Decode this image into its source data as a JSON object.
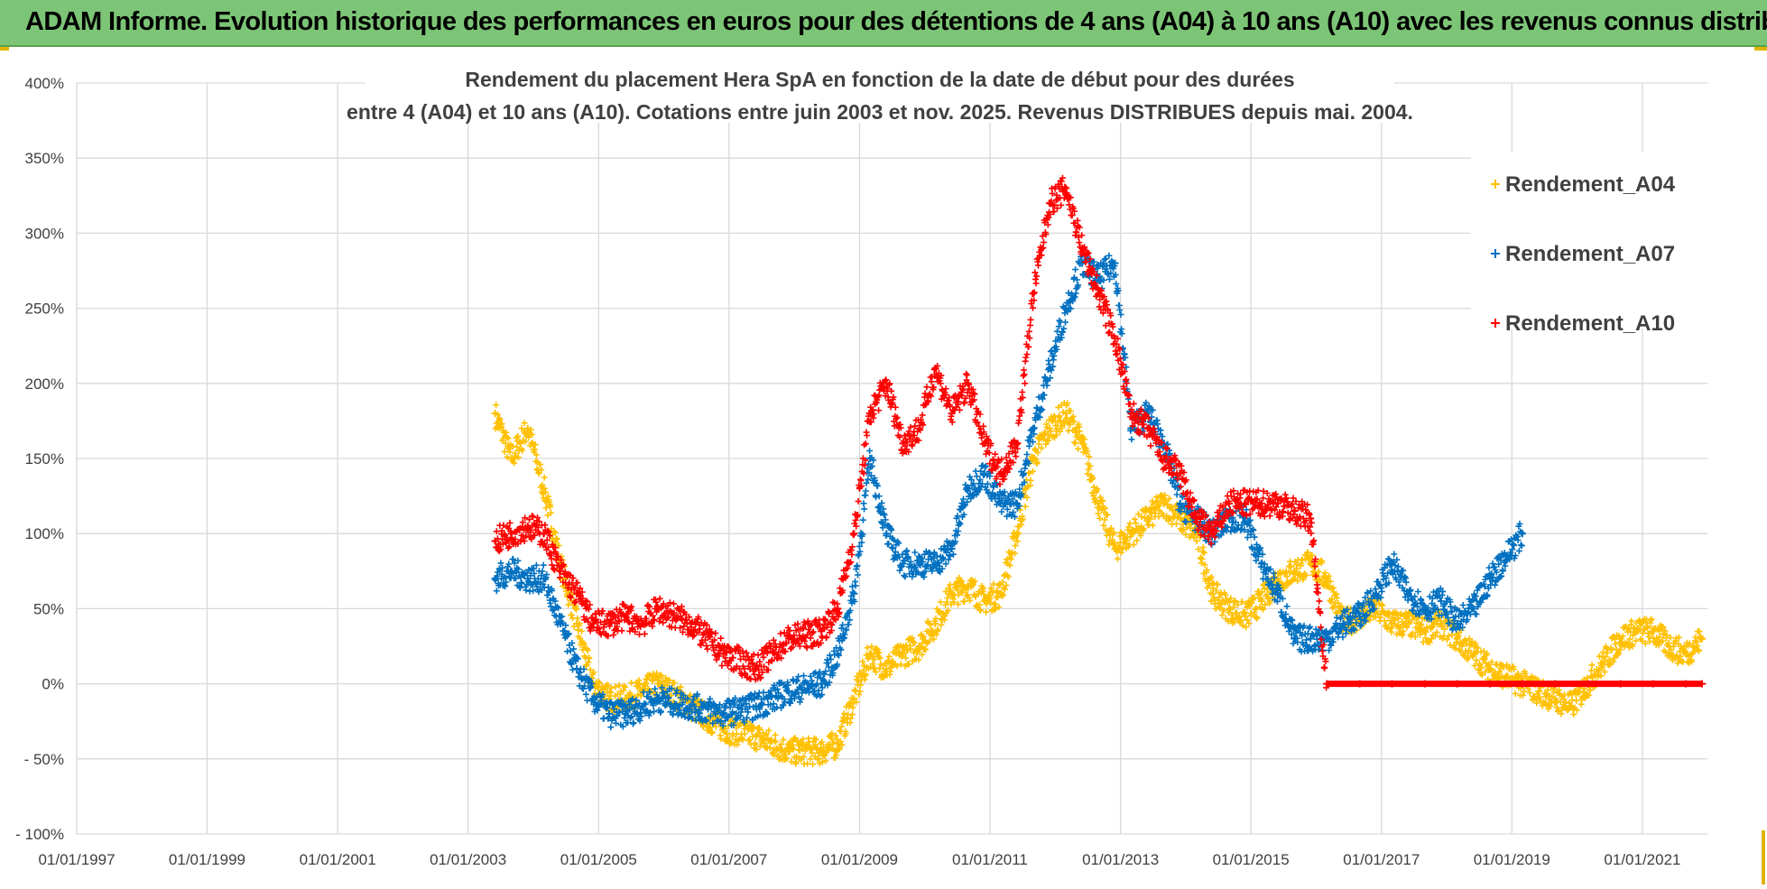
{
  "banner": {
    "text": "ADAM Informe. Evolution historique des performances en euros pour des détentions de 4 ans (A04) à 10 ans (A10) avec les revenus connus distribués"
  },
  "colors": {
    "banner": "#7cc576",
    "a04": "#ffc000",
    "a07": "#0070c0",
    "a10": "#ff0000",
    "grid": "#d9d9d9",
    "text": "#404040"
  },
  "chart_data": {
    "type": "scatter",
    "title": "Rendement du placement Hera SpA en fonction de la date de début pour des durées",
    "subtitle": "entre 4 (A04) et 10 ans (A10). Cotations entre juin 2003 et nov. 2025. Revenus DISTRIBUES depuis mai. 2004.",
    "xlabel": "",
    "ylabel": "",
    "x_ticks": [
      "01/01/1997",
      "01/01/1999",
      "01/01/2001",
      "01/01/2003",
      "01/01/2005",
      "01/01/2007",
      "01/01/2009",
      "01/01/2011",
      "01/01/2013",
      "01/01/2015",
      "01/01/2017",
      "01/01/2019",
      "01/01/2021"
    ],
    "y_ticks": [
      "400%",
      "350%",
      "300%",
      "250%",
      "200%",
      "150%",
      "100%",
      "50%",
      "0%",
      "- 50%",
      "- 100%"
    ],
    "xlim": [
      "1997-01-01",
      "2021-12-31"
    ],
    "ylim": [
      -100,
      400
    ],
    "grid": true,
    "legend_position": "top-right",
    "series": [
      {
        "name": "Rendement_A04",
        "color": "#ffc000",
        "points": [
          [
            "2003-06-01",
            180
          ],
          [
            "2003-09-01",
            150
          ],
          [
            "2003-12-01",
            170
          ],
          [
            "2004-03-01",
            130
          ],
          [
            "2004-06-01",
            80
          ],
          [
            "2004-09-01",
            40
          ],
          [
            "2004-12-01",
            0
          ],
          [
            "2005-03-01",
            -10
          ],
          [
            "2005-06-01",
            -10
          ],
          [
            "2005-09-01",
            -5
          ],
          [
            "2005-12-01",
            0
          ],
          [
            "2006-06-01",
            -15
          ],
          [
            "2006-12-01",
            -30
          ],
          [
            "2007-06-01",
            -35
          ],
          [
            "2007-12-01",
            -45
          ],
          [
            "2008-06-01",
            -45
          ],
          [
            "2008-09-01",
            -40
          ],
          [
            "2008-12-01",
            -10
          ],
          [
            "2009-03-01",
            20
          ],
          [
            "2009-06-01",
            10
          ],
          [
            "2009-09-01",
            20
          ],
          [
            "2009-12-01",
            25
          ],
          [
            "2010-03-01",
            40
          ],
          [
            "2010-06-01",
            60
          ],
          [
            "2010-09-01",
            65
          ],
          [
            "2010-12-01",
            55
          ],
          [
            "2011-03-01",
            60
          ],
          [
            "2011-06-01",
            100
          ],
          [
            "2011-09-01",
            150
          ],
          [
            "2011-12-01",
            170
          ],
          [
            "2012-03-01",
            180
          ],
          [
            "2012-06-01",
            160
          ],
          [
            "2012-09-01",
            120
          ],
          [
            "2012-12-01",
            90
          ],
          [
            "2013-03-01",
            100
          ],
          [
            "2013-06-01",
            110
          ],
          [
            "2013-09-01",
            120
          ],
          [
            "2013-12-01",
            110
          ],
          [
            "2014-03-01",
            100
          ],
          [
            "2014-06-01",
            60
          ],
          [
            "2014-09-01",
            50
          ],
          [
            "2014-12-01",
            45
          ],
          [
            "2015-03-01",
            55
          ],
          [
            "2015-06-01",
            70
          ],
          [
            "2015-09-01",
            75
          ],
          [
            "2015-12-01",
            80
          ],
          [
            "2016-03-01",
            70
          ],
          [
            "2016-06-01",
            40
          ],
          [
            "2016-09-01",
            45
          ],
          [
            "2016-12-01",
            50
          ],
          [
            "2017-03-01",
            40
          ],
          [
            "2017-06-01",
            40
          ],
          [
            "2017-09-01",
            35
          ],
          [
            "2017-12-01",
            40
          ],
          [
            "2018-03-01",
            30
          ],
          [
            "2018-06-01",
            20
          ],
          [
            "2018-09-01",
            10
          ],
          [
            "2018-12-01",
            5
          ],
          [
            "2019-03-01",
            0
          ],
          [
            "2019-06-01",
            -5
          ],
          [
            "2019-09-01",
            -10
          ],
          [
            "2019-12-01",
            -15
          ],
          [
            "2020-03-01",
            0
          ],
          [
            "2020-06-01",
            15
          ],
          [
            "2020-09-01",
            30
          ],
          [
            "2020-12-01",
            35
          ],
          [
            "2021-03-01",
            35
          ],
          [
            "2021-06-01",
            25
          ],
          [
            "2021-09-01",
            20
          ],
          [
            "2021-12-01",
            30
          ]
        ]
      },
      {
        "name": "Rendement_A07",
        "color": "#0070c0",
        "points": [
          [
            "2003-06-01",
            70
          ],
          [
            "2003-09-01",
            75
          ],
          [
            "2003-12-01",
            70
          ],
          [
            "2004-03-01",
            70
          ],
          [
            "2004-06-01",
            40
          ],
          [
            "2004-09-01",
            10
          ],
          [
            "2004-12-01",
            -10
          ],
          [
            "2005-03-01",
            -20
          ],
          [
            "2005-06-01",
            -20
          ],
          [
            "2005-09-01",
            -15
          ],
          [
            "2005-12-01",
            -10
          ],
          [
            "2006-06-01",
            -15
          ],
          [
            "2006-12-01",
            -20
          ],
          [
            "2007-06-01",
            -15
          ],
          [
            "2007-12-01",
            -5
          ],
          [
            "2008-06-01",
            0
          ],
          [
            "2008-09-01",
            20
          ],
          [
            "2008-12-01",
            60
          ],
          [
            "2009-03-01",
            150
          ],
          [
            "2009-06-01",
            100
          ],
          [
            "2009-09-01",
            80
          ],
          [
            "2009-12-01",
            80
          ],
          [
            "2010-03-01",
            80
          ],
          [
            "2010-06-01",
            90
          ],
          [
            "2010-09-01",
            130
          ],
          [
            "2010-12-01",
            140
          ],
          [
            "2011-03-01",
            120
          ],
          [
            "2011-06-01",
            120
          ],
          [
            "2011-09-01",
            170
          ],
          [
            "2011-12-01",
            210
          ],
          [
            "2012-03-01",
            250
          ],
          [
            "2012-06-01",
            280
          ],
          [
            "2012-09-01",
            270
          ],
          [
            "2012-12-01",
            280
          ],
          [
            "2013-03-01",
            170
          ],
          [
            "2013-06-01",
            180
          ],
          [
            "2013-09-01",
            160
          ],
          [
            "2013-12-01",
            120
          ],
          [
            "2014-03-01",
            110
          ],
          [
            "2014-06-01",
            100
          ],
          [
            "2014-09-01",
            110
          ],
          [
            "2014-12-01",
            110
          ],
          [
            "2015-03-01",
            80
          ],
          [
            "2015-06-01",
            60
          ],
          [
            "2015-09-01",
            30
          ],
          [
            "2015-12-01",
            30
          ],
          [
            "2016-03-01",
            30
          ],
          [
            "2016-06-01",
            40
          ],
          [
            "2016-09-01",
            45
          ],
          [
            "2016-12-01",
            60
          ],
          [
            "2017-03-01",
            80
          ],
          [
            "2017-06-01",
            60
          ],
          [
            "2017-09-01",
            50
          ],
          [
            "2017-12-01",
            55
          ],
          [
            "2018-03-01",
            40
          ],
          [
            "2018-06-01",
            50
          ],
          [
            "2018-09-01",
            70
          ],
          [
            "2018-12-01",
            85
          ],
          [
            "2019-03-01",
            100
          ]
        ]
      },
      {
        "name": "Rendement_A10",
        "color": "#ff0000",
        "points": [
          [
            "2003-06-01",
            95
          ],
          [
            "2003-09-01",
            100
          ],
          [
            "2003-12-01",
            105
          ],
          [
            "2004-03-01",
            100
          ],
          [
            "2004-06-01",
            75
          ],
          [
            "2004-09-01",
            60
          ],
          [
            "2004-12-01",
            40
          ],
          [
            "2005-03-01",
            40
          ],
          [
            "2005-06-01",
            45
          ],
          [
            "2005-09-01",
            40
          ],
          [
            "2005-12-01",
            50
          ],
          [
            "2006-06-01",
            40
          ],
          [
            "2006-12-01",
            20
          ],
          [
            "2007-06-01",
            10
          ],
          [
            "2007-12-01",
            30
          ],
          [
            "2008-06-01",
            35
          ],
          [
            "2008-09-01",
            50
          ],
          [
            "2008-12-01",
            100
          ],
          [
            "2009-03-01",
            180
          ],
          [
            "2009-06-01",
            200
          ],
          [
            "2009-09-01",
            160
          ],
          [
            "2009-12-01",
            170
          ],
          [
            "2010-03-01",
            210
          ],
          [
            "2010-06-01",
            180
          ],
          [
            "2010-09-01",
            200
          ],
          [
            "2010-12-01",
            160
          ],
          [
            "2011-03-01",
            140
          ],
          [
            "2011-06-01",
            160
          ],
          [
            "2011-09-01",
            260
          ],
          [
            "2011-12-01",
            320
          ],
          [
            "2012-03-01",
            330
          ],
          [
            "2012-06-01",
            290
          ],
          [
            "2012-09-01",
            260
          ],
          [
            "2012-12-01",
            230
          ],
          [
            "2013-03-01",
            180
          ],
          [
            "2013-06-01",
            170
          ],
          [
            "2013-09-01",
            150
          ],
          [
            "2013-12-01",
            140
          ],
          [
            "2014-03-01",
            110
          ],
          [
            "2014-06-01",
            100
          ],
          [
            "2014-09-01",
            120
          ],
          [
            "2014-12-01",
            120
          ],
          [
            "2015-03-01",
            120
          ],
          [
            "2015-06-01",
            120
          ],
          [
            "2015-09-01",
            115
          ],
          [
            "2015-12-01",
            110
          ],
          [
            "2016-03-01",
            0
          ],
          [
            "2016-09-01",
            0
          ],
          [
            "2017-03-01",
            0
          ],
          [
            "2017-09-01",
            0
          ],
          [
            "2018-03-01",
            0
          ],
          [
            "2018-09-01",
            0
          ],
          [
            "2019-03-01",
            0
          ],
          [
            "2019-09-01",
            0
          ],
          [
            "2020-03-01",
            0
          ],
          [
            "2020-09-01",
            0
          ],
          [
            "2021-03-01",
            0
          ],
          [
            "2021-09-01",
            0
          ],
          [
            "2021-12-01",
            0
          ]
        ]
      }
    ]
  }
}
